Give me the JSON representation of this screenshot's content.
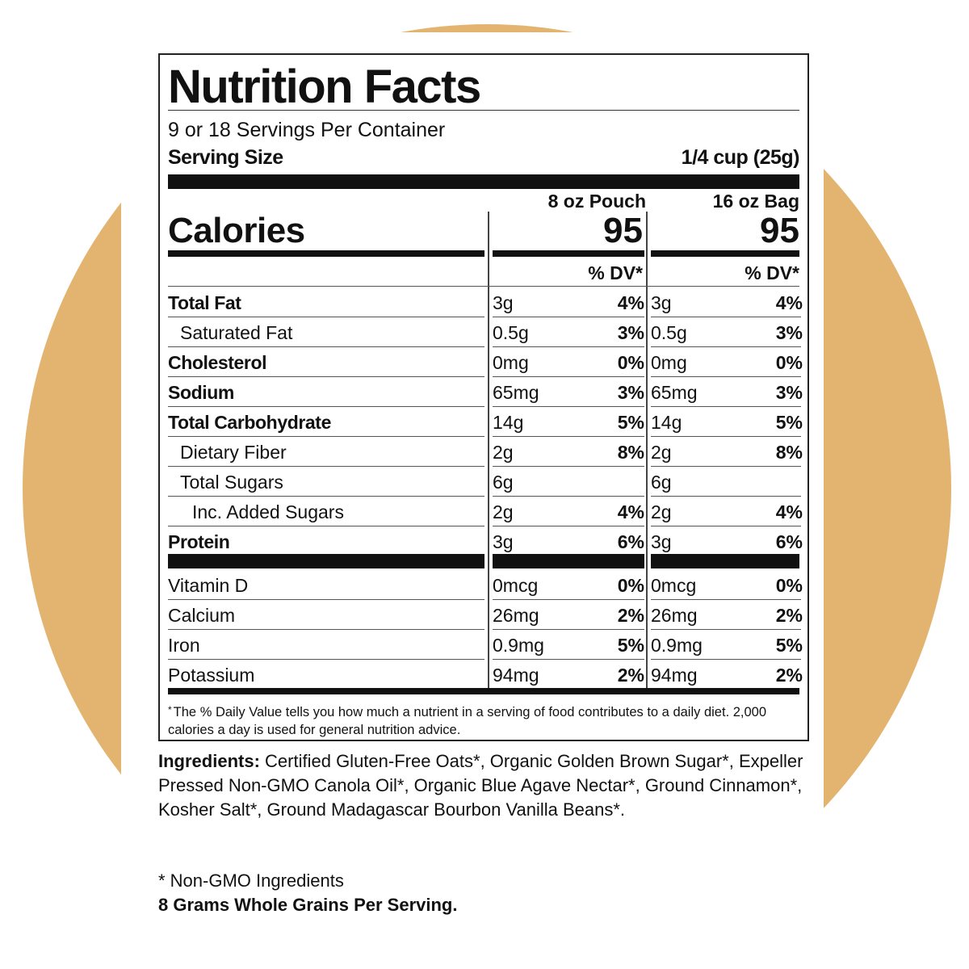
{
  "colors": {
    "circle": "#e2b470",
    "ink": "#111111",
    "background": "#ffffff"
  },
  "label": {
    "title": "Nutrition Facts",
    "servings_per_container": "9 or 18 Servings Per Container",
    "serving_size_label": "Serving Size",
    "serving_size_value": "1/4 cup (25g)",
    "columns": [
      "8 oz Pouch",
      "16 oz Bag"
    ],
    "calories_label": "Calories",
    "calories": [
      "95",
      "95"
    ],
    "dv_header": "% DV*",
    "nutrients": [
      {
        "name": "Total Fat",
        "bold": true,
        "indent": 0,
        "c1_amt": "3g",
        "c1_dv": "4%",
        "c2_amt": "3g",
        "c2_dv": "4%"
      },
      {
        "name": "Saturated Fat",
        "bold": false,
        "indent": 1,
        "c1_amt": "0.5g",
        "c1_dv": "3%",
        "c2_amt": "0.5g",
        "c2_dv": "3%"
      },
      {
        "name": "Cholesterol",
        "bold": true,
        "indent": 0,
        "c1_amt": "0mg",
        "c1_dv": "0%",
        "c2_amt": "0mg",
        "c2_dv": "0%"
      },
      {
        "name": "Sodium",
        "bold": true,
        "indent": 0,
        "c1_amt": "65mg",
        "c1_dv": "3%",
        "c2_amt": "65mg",
        "c2_dv": "3%"
      },
      {
        "name": "Total Carbohydrate",
        "bold": true,
        "indent": 0,
        "c1_amt": "14g",
        "c1_dv": "5%",
        "c2_amt": "14g",
        "c2_dv": "5%"
      },
      {
        "name": "Dietary Fiber",
        "bold": false,
        "indent": 1,
        "c1_amt": "2g",
        "c1_dv": "8%",
        "c2_amt": "2g",
        "c2_dv": "8%"
      },
      {
        "name": "Total Sugars",
        "bold": false,
        "indent": 1,
        "c1_amt": "6g",
        "c1_dv": "",
        "c2_amt": "6g",
        "c2_dv": ""
      },
      {
        "name": "Inc. Added Sugars",
        "bold": false,
        "indent": 2,
        "c1_amt": "2g",
        "c1_dv": "4%",
        "c2_amt": "2g",
        "c2_dv": "4%"
      },
      {
        "name": "Protein",
        "bold": true,
        "indent": 0,
        "c1_amt": "3g",
        "c1_dv": "6%",
        "c2_amt": "3g",
        "c2_dv": "6%"
      }
    ],
    "vitamins": [
      {
        "name": "Vitamin D",
        "c1_amt": "0mcg",
        "c1_dv": "0%",
        "c2_amt": "0mcg",
        "c2_dv": "0%"
      },
      {
        "name": "Calcium",
        "c1_amt": "26mg",
        "c1_dv": "2%",
        "c2_amt": "26mg",
        "c2_dv": "2%"
      },
      {
        "name": "Iron",
        "c1_amt": "0.9mg",
        "c1_dv": "5%",
        "c2_amt": "0.9mg",
        "c2_dv": "5%"
      },
      {
        "name": "Potassium",
        "c1_amt": "94mg",
        "c1_dv": "2%",
        "c2_amt": "94mg",
        "c2_dv": "2%"
      }
    ],
    "footnote_mark": "*",
    "footnote": "The % Daily Value tells you how much a nutrient in a serving of food contributes to a daily diet. 2,000 calories a day is used for general nutrition advice."
  },
  "ingredients": {
    "label": "Ingredients:",
    "text": "Certified Gluten-Free Oats*, Organic Golden Brown Sugar*, Expeller Pressed Non-GMO Canola Oil*, Organic Blue Agave Nectar*, Ground Cinnamon*, Kosher Salt*, Ground Madagascar Bourbon Vanilla Beans*."
  },
  "non_gmo_note": "* Non-GMO Ingredients",
  "whole_grains_note": "8 Grams Whole Grains Per Serving."
}
